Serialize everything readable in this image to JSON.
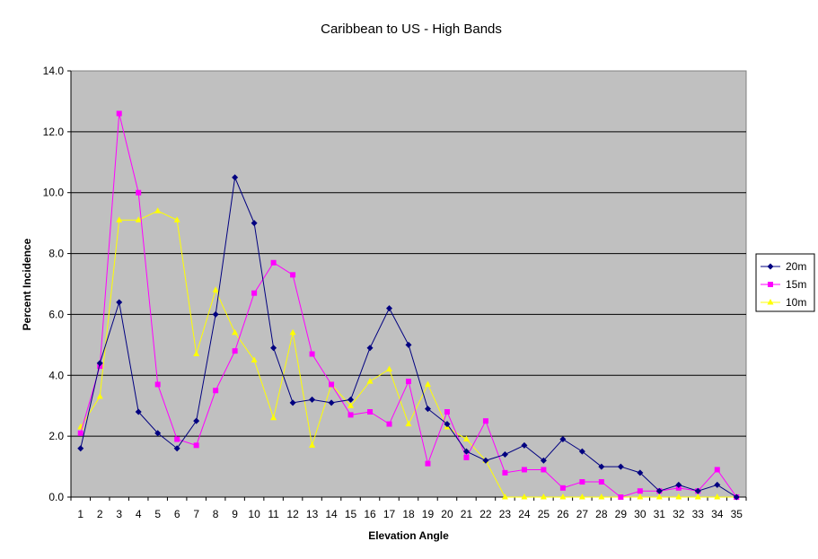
{
  "chart_data": {
    "type": "line",
    "title": "Caribbean to US - High Bands",
    "xlabel": "Elevation Angle",
    "ylabel": "Percent Incidence",
    "ylim": [
      0,
      14
    ],
    "ytick_step": 2,
    "ytick_labels": [
      "0.0",
      "2.0",
      "4.0",
      "6.0",
      "8.0",
      "10.0",
      "12.0",
      "14.0"
    ],
    "categories": [
      "1",
      "2",
      "3",
      "4",
      "5",
      "6",
      "7",
      "8",
      "9",
      "10",
      "11",
      "12",
      "13",
      "14",
      "15",
      "16",
      "17",
      "18",
      "19",
      "20",
      "21",
      "22",
      "23",
      "24",
      "25",
      "26",
      "27",
      "28",
      "29",
      "30",
      "31",
      "32",
      "33",
      "34",
      "35"
    ],
    "grid": true,
    "legend_position": "right",
    "plot_background": "#C0C0C0",
    "series": [
      {
        "name": "20m",
        "color": "#000080",
        "marker": "diamond",
        "values": [
          1.6,
          4.4,
          6.4,
          2.8,
          2.1,
          1.6,
          2.5,
          6.0,
          10.5,
          9.0,
          4.9,
          3.1,
          3.2,
          3.1,
          3.2,
          4.9,
          6.2,
          5.0,
          2.9,
          2.4,
          1.5,
          1.2,
          1.4,
          1.7,
          1.2,
          1.9,
          1.5,
          1.0,
          1.0,
          0.8,
          0.2,
          0.4,
          0.2,
          0.4,
          0.0
        ]
      },
      {
        "name": "15m",
        "color": "#FF00FF",
        "marker": "square",
        "values": [
          2.1,
          4.3,
          12.6,
          10.0,
          3.7,
          1.9,
          1.7,
          3.5,
          4.8,
          6.7,
          7.7,
          7.3,
          4.7,
          3.7,
          2.7,
          2.8,
          2.4,
          3.8,
          1.1,
          2.8,
          1.3,
          2.5,
          0.8,
          0.9,
          0.9,
          0.3,
          0.5,
          0.5,
          0.0,
          0.2,
          0.2,
          0.3,
          0.2,
          0.9,
          0.0
        ]
      },
      {
        "name": "10m",
        "color": "#FFFF00",
        "marker": "triangle",
        "values": [
          2.3,
          3.3,
          9.1,
          9.1,
          9.4,
          9.1,
          4.7,
          6.8,
          5.4,
          4.5,
          2.6,
          5.4,
          1.7,
          3.7,
          3.0,
          3.8,
          4.2,
          2.4,
          3.7,
          2.3,
          1.9,
          1.2,
          0.0,
          0.0,
          0.0,
          0.0,
          0.0,
          0.0,
          0.0,
          0.0,
          0.0,
          0.0,
          0.0,
          0.0,
          0.0
        ]
      }
    ]
  }
}
